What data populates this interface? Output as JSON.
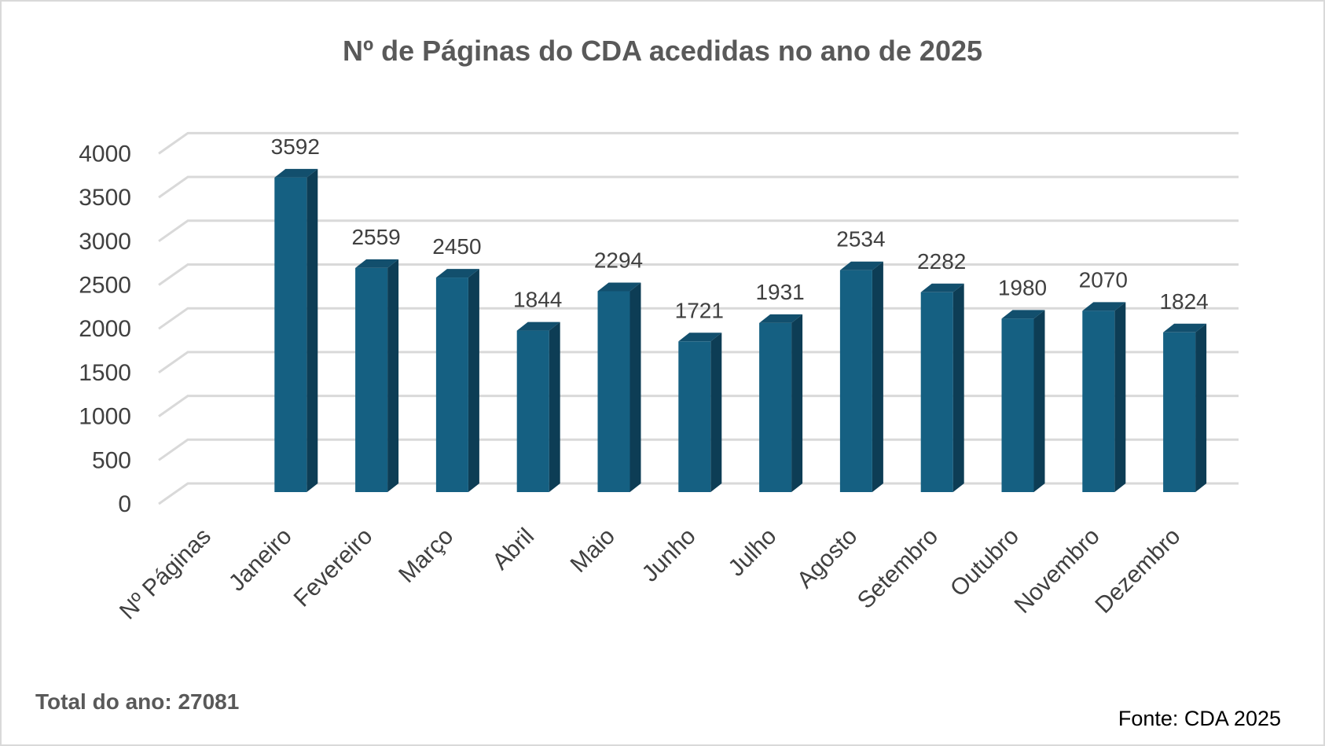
{
  "chart_data": {
    "type": "bar",
    "style": "3d-column",
    "title": "Nº de Páginas do CDA acedidas no ano de 2025",
    "categories": [
      "Nº Páginas",
      "Janeiro",
      "Fevereiro",
      "Março",
      "Abril",
      "Maio",
      "Junho",
      "Julho",
      "Agosto",
      "Setembro",
      "Outubro",
      "Novembro",
      "Dezembro"
    ],
    "values": [
      null,
      3592,
      2559,
      2450,
      1844,
      2294,
      1721,
      1931,
      2534,
      2282,
      1980,
      2070,
      1824
    ],
    "ylim": [
      0,
      4000
    ],
    "yticks": [
      0,
      500,
      1000,
      1500,
      2000,
      2500,
      3000,
      3500,
      4000
    ],
    "grid": true,
    "xlabel": "",
    "ylabel": "",
    "colors": {
      "bar_front": "#156082",
      "bar_side": "#0d3d55",
      "bar_top": "#124f6d",
      "grid": "#d9d9d9",
      "text": "#404040",
      "title": "#595959"
    }
  },
  "footer": {
    "total": "Total do ano: 27081",
    "source": "Fonte: CDA 2025"
  }
}
